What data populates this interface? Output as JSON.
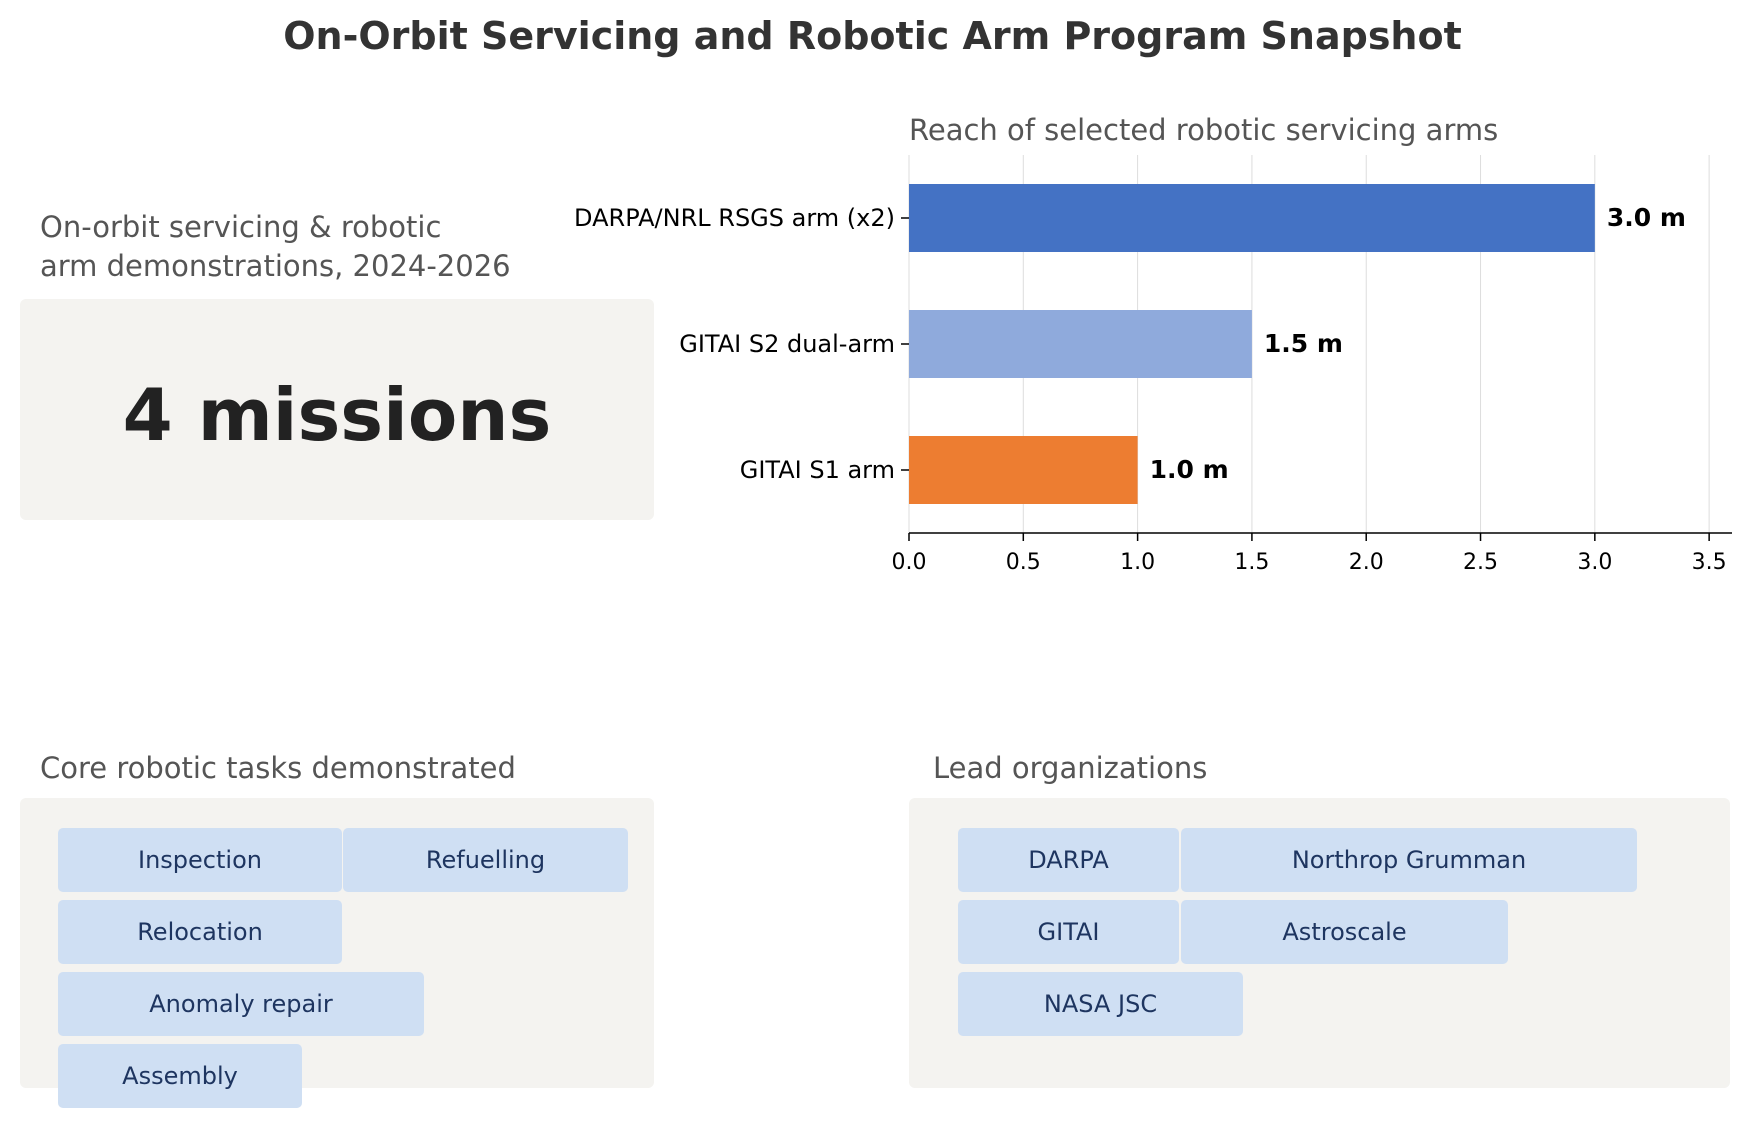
{
  "title": "On-Orbit Servicing and Robotic Arm Program Snapshot",
  "kpi": {
    "label": "On-orbit servicing & robotic\narm demonstrations, 2024-2026",
    "value": "4 missions"
  },
  "tasks": {
    "title": "Core robotic tasks demonstrated",
    "items": [
      "Inspection",
      "Refuelling",
      "Relocation",
      "Anomaly repair",
      "Assembly"
    ]
  },
  "orgs": {
    "title": "Lead organizations",
    "items": [
      "DARPA",
      "Northrop Grumman",
      "GITAI",
      "Astroscale",
      "NASA JSC"
    ]
  },
  "chart_data": {
    "type": "bar",
    "orientation": "horizontal",
    "title": "Reach of selected robotic servicing arms",
    "categories": [
      "DARPA/NRL RSGS arm (x2)",
      "GITAI S2 dual-arm",
      "GITAI S1 arm"
    ],
    "values": [
      3.0,
      1.5,
      1.0
    ],
    "value_labels": [
      "3.0 m",
      "1.5 m",
      "1.0 m"
    ],
    "colors": [
      "#4472c4",
      "#8faadc",
      "#ed7d31"
    ],
    "xlim": [
      0,
      3.6
    ],
    "xticks": [
      0.0,
      0.5,
      1.0,
      1.5,
      2.0,
      2.5,
      3.0,
      3.5
    ],
    "xtick_labels": [
      "0.0",
      "0.5",
      "1.0",
      "1.5",
      "2.0",
      "2.5",
      "3.0",
      "3.5"
    ],
    "xlabel": "",
    "ylabel": "",
    "grid": "vertical"
  }
}
